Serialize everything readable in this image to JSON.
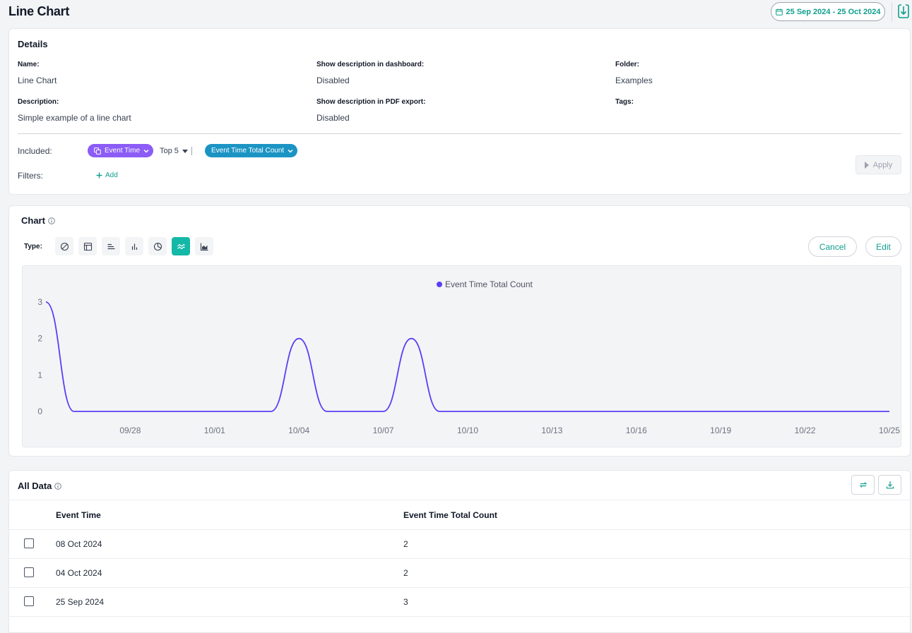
{
  "page": {
    "title": "Line Chart"
  },
  "header": {
    "date_range": "25 Sep 2024 - 25 Oct 2024",
    "date_icon": "calendar-icon",
    "export_icon": "export-download-icon"
  },
  "details": {
    "title": "Details",
    "name_label": "Name:",
    "name_value": "Line Chart",
    "description_label": "Description:",
    "description_value": "Simple example of a line chart",
    "show_desc_dashboard_label": "Show description in dashboard:",
    "show_desc_dashboard_value": "Disabled",
    "show_desc_pdf_label": "Show description in PDF export:",
    "show_desc_pdf_value": "Disabled",
    "folder_label": "Folder:",
    "folder_value": "Examples",
    "tags_label": "Tags:",
    "included_label": "Included:",
    "included_dimension": "Event Time",
    "top_n": "Top 5",
    "included_measure": "Event Time Total Count",
    "filters_label": "Filters:",
    "add_label": "Add",
    "apply_label": "Apply"
  },
  "chart_section": {
    "title": "Chart",
    "type_label": "Type:",
    "types": [
      "none",
      "table",
      "horizontal-bar",
      "vertical-bar",
      "pie",
      "line",
      "area"
    ],
    "active_type": "line",
    "cancel_label": "Cancel",
    "edit_label": "Edit"
  },
  "colors": {
    "accent": "#14b8a6",
    "series": "#5b3df5",
    "pill_purple": "#8b5cf6",
    "pill_teal": "#1b94c4"
  },
  "chart_data": {
    "type": "line",
    "title": "",
    "xlabel": "",
    "ylabel": "",
    "legend": "top-center",
    "grid": false,
    "ylim": [
      0,
      3
    ],
    "yticks": [
      "0",
      "1",
      "2",
      "3"
    ],
    "xticks": [
      "09/28",
      "10/01",
      "10/04",
      "10/07",
      "10/10",
      "10/13",
      "10/16",
      "10/19",
      "10/22",
      "10/25"
    ],
    "x": [
      "09/25",
      "09/26",
      "09/27",
      "09/28",
      "09/29",
      "09/30",
      "10/01",
      "10/02",
      "10/03",
      "10/04",
      "10/05",
      "10/06",
      "10/07",
      "10/08",
      "10/09",
      "10/10",
      "10/11",
      "10/12",
      "10/13",
      "10/14",
      "10/15",
      "10/16",
      "10/17",
      "10/18",
      "10/19",
      "10/20",
      "10/21",
      "10/22",
      "10/23",
      "10/24",
      "10/25"
    ],
    "series": [
      {
        "name": "Event Time Total Count",
        "values": [
          3,
          0,
          0,
          0,
          0,
          0,
          0,
          0,
          0,
          2,
          0,
          0,
          0,
          2,
          0,
          0,
          0,
          0,
          0,
          0,
          0,
          0,
          0,
          0,
          0,
          0,
          0,
          0,
          0,
          0,
          0
        ]
      }
    ]
  },
  "all_data": {
    "title": "All Data",
    "refresh_icon": "refresh-icon",
    "download_icon": "download-icon",
    "columns": [
      "Event Time",
      "Event Time Total Count"
    ],
    "rows": [
      {
        "event_time": "08 Oct 2024",
        "count": "2"
      },
      {
        "event_time": "04 Oct 2024",
        "count": "2"
      },
      {
        "event_time": "25 Sep 2024",
        "count": "3"
      }
    ]
  }
}
